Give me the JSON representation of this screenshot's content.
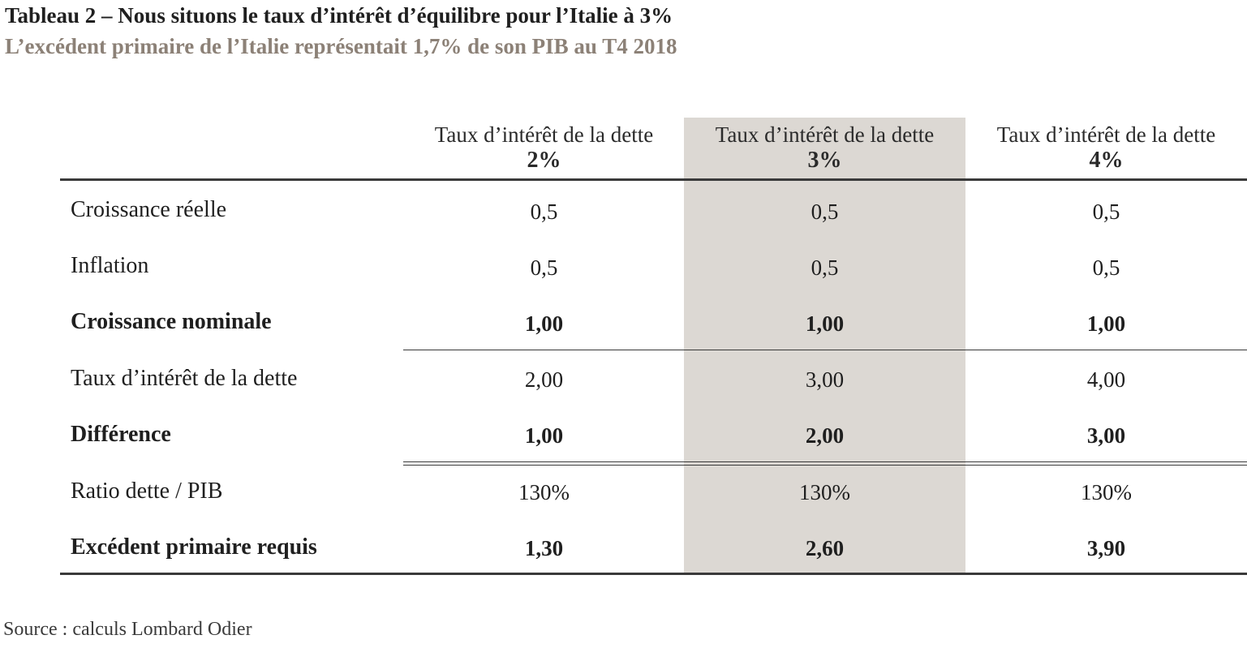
{
  "title": "Tableau 2 – Nous situons le taux d’intérêt d’équilibre pour l’Italie à 3%",
  "subtitle": "L’excédent primaire de l’Italie représentait 1,7% de son PIB au T4 2018",
  "columns": [
    {
      "label": "Taux d’intérêt de la dette",
      "rate": "2%"
    },
    {
      "label": "Taux d’intérêt de la dette",
      "rate": "3%"
    },
    {
      "label": "Taux d’intérêt de la dette",
      "rate": "4%"
    }
  ],
  "rows": [
    {
      "label": "Croissance réelle",
      "values": [
        "0,5",
        "0,5",
        "0,5"
      ]
    },
    {
      "label": "Inflation",
      "values": [
        "0,5",
        "0,5",
        "0,5"
      ]
    },
    {
      "label": "Croissance nominale",
      "values": [
        "1,00",
        "1,00",
        "1,00"
      ]
    },
    {
      "label": "Taux d’intérêt de la dette",
      "values": [
        "2,00",
        "3,00",
        "4,00"
      ]
    },
    {
      "label": "Différence",
      "values": [
        "1,00",
        "2,00",
        "3,00"
      ]
    },
    {
      "label": "Ratio dette / PIB",
      "values": [
        "130%",
        "130%",
        "130%"
      ]
    },
    {
      "label": "Excédent primaire requis",
      "values": [
        "1,30",
        "2,60",
        "3,90"
      ]
    }
  ],
  "source": "Source : calculs Lombard Odier",
  "colors": {
    "highlight": "#dcd8d3",
    "subtitle": "#8c8177",
    "text": "#1f1f1f"
  }
}
